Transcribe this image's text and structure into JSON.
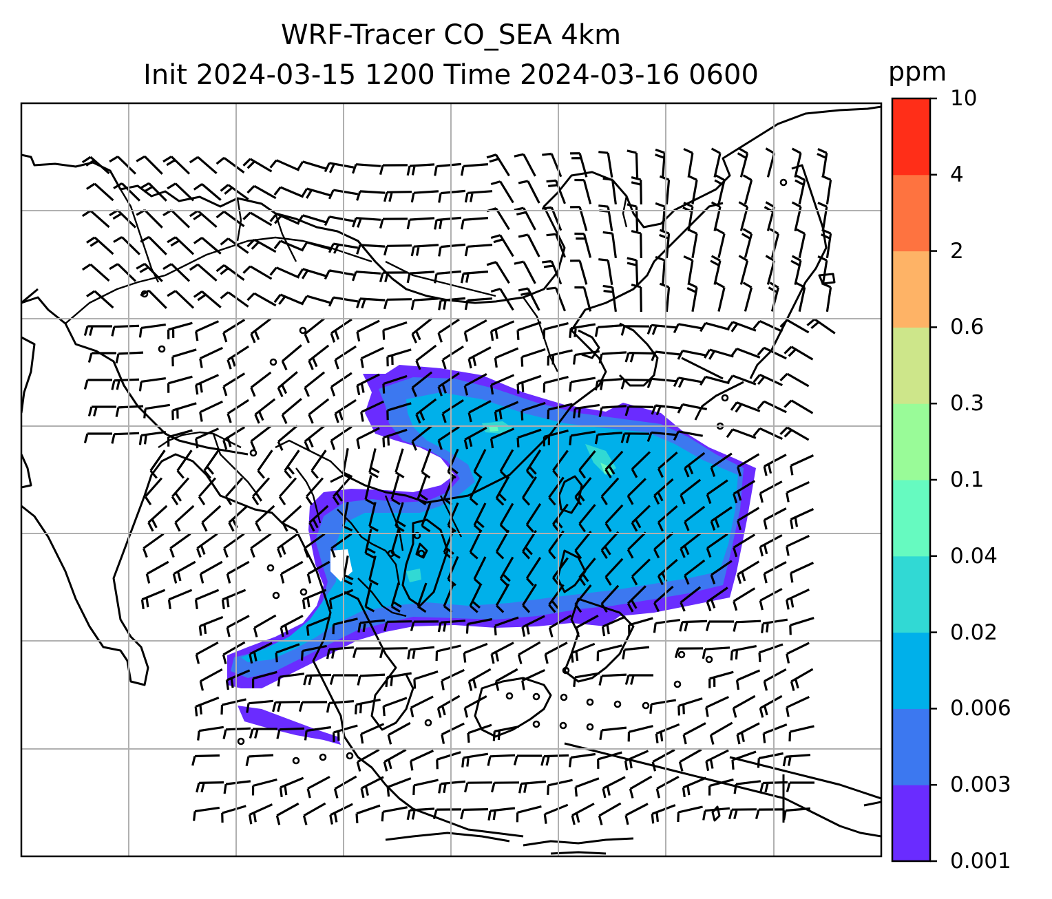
{
  "title": {
    "line1": "WRF-Tracer CO_SEA 4km",
    "line2": "Init 2024-03-15 1200 Time 2024-03-16 0600"
  },
  "colorbar": {
    "unit": "ppm",
    "levels": [
      "0.001",
      "0.003",
      "0.006",
      "0.02",
      "0.04",
      "0.1",
      "0.3",
      "0.6",
      "2",
      "4",
      "10"
    ],
    "colors": [
      "#6a2cff",
      "#3c78f0",
      "#00b0ea",
      "#31d9d4",
      "#66fac0",
      "#99fb98",
      "#cde68a",
      "#feb366",
      "#fe7340",
      "#ff2e18"
    ]
  },
  "map": {
    "grid_lines": "on",
    "features": [
      "coastlines",
      "country-borders",
      "wind-barbs",
      "co-tracer-concentration"
    ]
  }
}
